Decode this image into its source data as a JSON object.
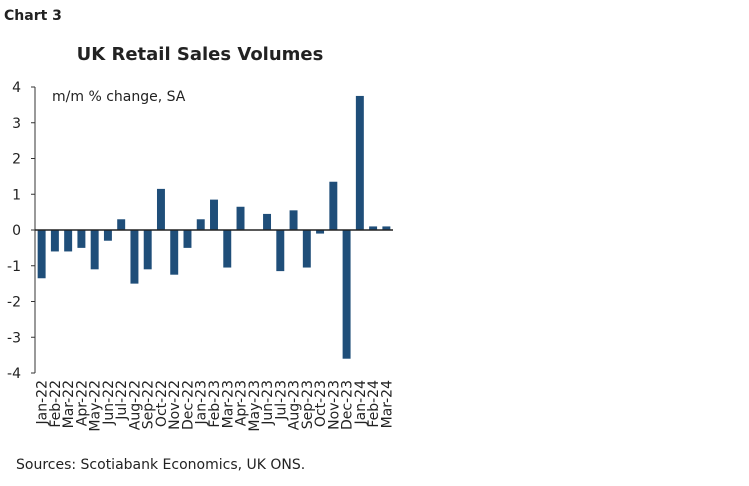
{
  "header": "Chart 3",
  "chart_data": {
    "type": "bar",
    "title": "UK Retail Sales Volumes",
    "annotation": "m/m % change, SA",
    "categories": [
      "Jan-22",
      "Feb-22",
      "Mar-22",
      "Apr-22",
      "May-22",
      "Jun-22",
      "Jul-22",
      "Aug-22",
      "Sep-22",
      "Oct-22",
      "Nov-22",
      "Dec-22",
      "Jan-23",
      "Feb-23",
      "Mar-23",
      "Apr-23",
      "May-23",
      "Jun-23",
      "Jul-23",
      "Aug-23",
      "Sep-23",
      "Oct-23",
      "Nov-23",
      "Dec-23",
      "Jan-24",
      "Feb-24",
      "Mar-24"
    ],
    "values": [
      -1.35,
      -0.6,
      -0.6,
      -0.5,
      -1.1,
      -0.3,
      0.3,
      -1.5,
      -1.1,
      1.15,
      -1.25,
      -0.5,
      0.3,
      0.85,
      -1.05,
      0.65,
      0,
      0.45,
      -1.15,
      0.55,
      -1.05,
      -0.1,
      1.35,
      -3.6,
      3.75,
      0.1,
      0.1
    ],
    "color": "#1f4e79",
    "ylim": [
      -4,
      4
    ],
    "yticks": [
      -4,
      -3,
      -2,
      -1,
      0,
      1,
      2,
      3,
      4
    ],
    "source": "Sources: Scotiabank Economics, UK ONS."
  }
}
